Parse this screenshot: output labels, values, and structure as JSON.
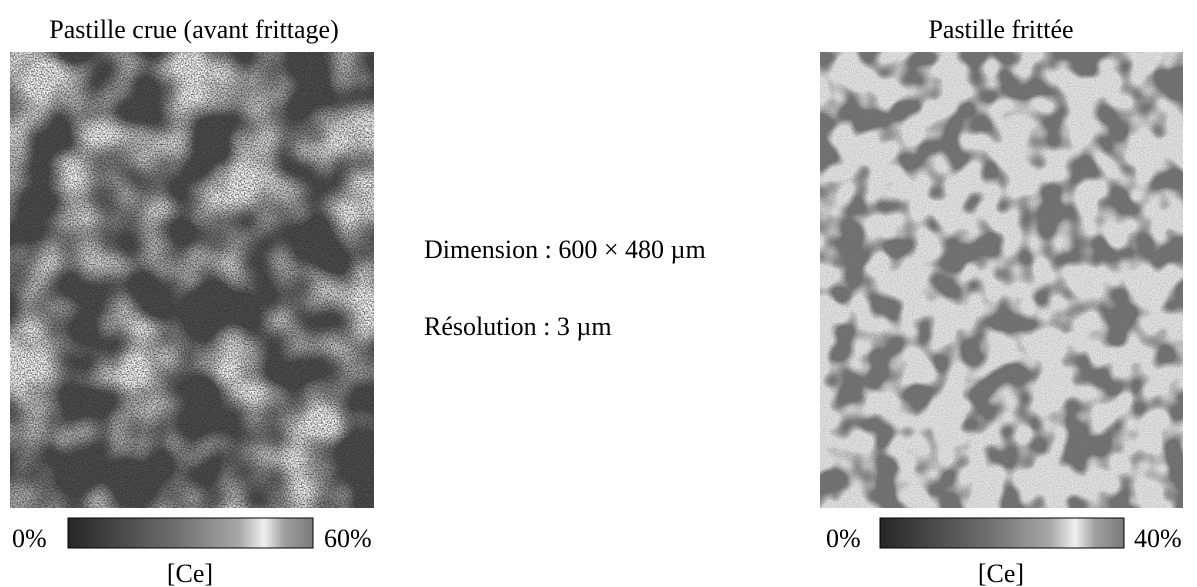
{
  "panels": [
    {
      "title": "Pastille crue (avant frittage)",
      "colorbar": {
        "min_label": "0%",
        "max_label": "60%",
        "label": "[Ce]"
      }
    },
    {
      "title": "Pastille frittée",
      "colorbar": {
        "min_label": "0%",
        "max_label": "40%",
        "label": "[Ce]"
      }
    }
  ],
  "info": {
    "dimension": "Dimension : 600 × 480 µm",
    "resolution": "Résolution : 3 µm"
  }
}
